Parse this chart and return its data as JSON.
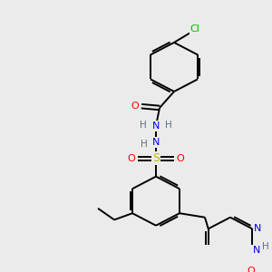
{
  "bg_color": "#ebebeb",
  "bond_color": "#000000",
  "atom_colors": {
    "C": "#000000",
    "N": "#0000ee",
    "O": "#ff0000",
    "S": "#bbbb00",
    "Cl": "#00bb00",
    "H": "#607080"
  },
  "figsize": [
    3.0,
    3.0
  ],
  "dpi": 100
}
